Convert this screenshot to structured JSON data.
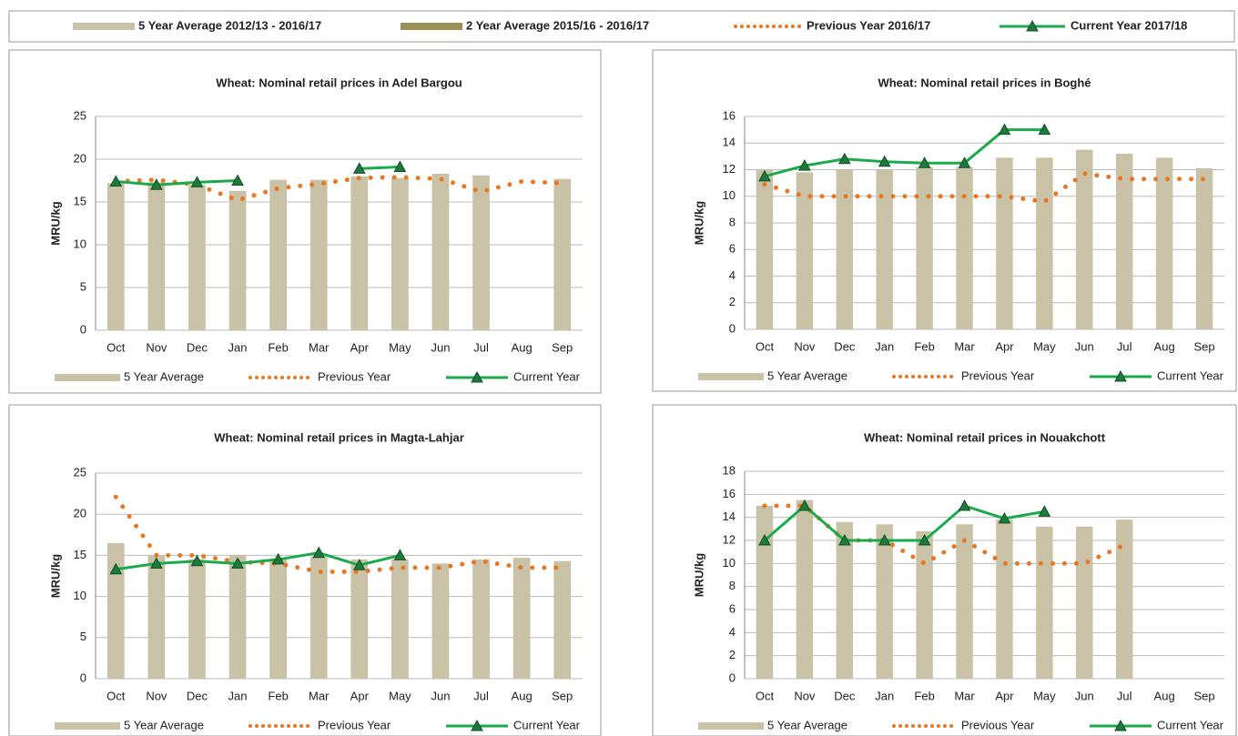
{
  "legend": [
    {
      "name": "5 Year Average 2012/13 - 2016/17",
      "color": "#c9c2a6",
      "style": "bar"
    },
    {
      "name": "2 Year Average 2015/16 - 2016/17",
      "color": "#9c8f57",
      "style": "bar"
    },
    {
      "name": "Previous Year 2016/17",
      "color": "#e87722",
      "style": "dotted"
    },
    {
      "name": "Current Year 2017/18",
      "color": "#1aaa4b",
      "style": "line-marker"
    }
  ],
  "chart_data": [
    {
      "type": "combo",
      "title": "Wheat: Nominal retail prices in Adel Bargou",
      "ylabel": "MRU/kg",
      "categories": [
        "Oct",
        "Nov",
        "Dec",
        "Jan",
        "Feb",
        "Mar",
        "Apr",
        "May",
        "Jun",
        "Jul",
        "Aug",
        "Sep"
      ],
      "ylim": [
        0,
        25
      ],
      "yticks": [
        0,
        5,
        10,
        15,
        20,
        25
      ],
      "grid": true,
      "series": [
        {
          "name": "5 Year Average",
          "color": "#c9c2a6",
          "style": "bar",
          "values": [
            17.2,
            17.3,
            17.0,
            16.3,
            17.6,
            17.6,
            18.0,
            17.8,
            18.3,
            18.1,
            null,
            17.7
          ]
        },
        {
          "name": "Previous Year",
          "color": "#e87722",
          "style": "dotted",
          "values": [
            17.4,
            17.6,
            17.0,
            15.2,
            16.6,
            17.1,
            17.8,
            17.9,
            17.7,
            16.2,
            17.4,
            17.2
          ]
        },
        {
          "name": "Current Year",
          "color": "#1aaa4b",
          "style": "line-marker",
          "values": [
            17.4,
            17.0,
            17.3,
            17.5,
            null,
            null,
            18.9,
            19.1,
            null,
            null,
            null,
            null
          ]
        }
      ]
    },
    {
      "type": "combo",
      "title": "Wheat: Nominal retail prices in Boghé",
      "ylabel": "MRU/kg",
      "categories": [
        "Oct",
        "Nov",
        "Dec",
        "Jan",
        "Feb",
        "Mar",
        "Apr",
        "May",
        "Jun",
        "Jul",
        "Aug",
        "Sep"
      ],
      "ylim": [
        0,
        16
      ],
      "yticks": [
        0,
        2,
        4,
        6,
        8,
        10,
        12,
        14,
        16
      ],
      "grid": true,
      "series": [
        {
          "name": "5 Year Average",
          "color": "#c9c2a6",
          "style": "bar",
          "values": [
            12.0,
            11.8,
            12.0,
            12.0,
            12.2,
            12.2,
            12.9,
            12.9,
            13.5,
            13.2,
            12.9,
            12.1
          ]
        },
        {
          "name": "Previous Year",
          "color": "#e87722",
          "style": "dotted",
          "values": [
            10.9,
            10.0,
            10.0,
            10.0,
            10.0,
            10.0,
            10.0,
            9.6,
            11.7,
            11.3,
            11.3,
            11.3
          ]
        },
        {
          "name": "Current Year",
          "color": "#1aaa4b",
          "style": "line-marker",
          "values": [
            11.5,
            12.3,
            12.8,
            12.6,
            12.5,
            12.5,
            15.0,
            15.0,
            null,
            null,
            null,
            null
          ]
        }
      ]
    },
    {
      "type": "combo",
      "title": "Wheat: Nominal retail prices in Magta-Lahjar",
      "ylabel": "MRU/kg",
      "categories": [
        "Oct",
        "Nov",
        "Dec",
        "Jan",
        "Feb",
        "Mar",
        "Apr",
        "May",
        "Jun",
        "Jul",
        "Aug",
        "Sep"
      ],
      "ylim": [
        0,
        25
      ],
      "yticks": [
        0,
        5,
        10,
        15,
        20,
        25
      ],
      "grid": true,
      "series": [
        {
          "name": "5 Year Average",
          "color": "#c9c2a6",
          "style": "bar",
          "values": [
            16.5,
            15.0,
            14.5,
            15.0,
            14.5,
            14.8,
            14.5,
            14.5,
            14.0,
            14.5,
            14.7,
            14.3
          ]
        },
        {
          "name": "Previous Year",
          "color": "#e87722",
          "style": "dotted",
          "values": [
            22.1,
            15.0,
            15.0,
            14.2,
            14.0,
            13.0,
            13.0,
            13.5,
            13.5,
            14.3,
            13.5,
            13.5
          ]
        },
        {
          "name": "Current Year",
          "color": "#1aaa4b",
          "style": "line-marker",
          "values": [
            13.3,
            14.0,
            14.3,
            14.0,
            14.5,
            15.3,
            13.8,
            15.0,
            null,
            null,
            null,
            null
          ]
        }
      ]
    },
    {
      "type": "combo",
      "title": "Wheat: Nominal retail prices in Nouakchott",
      "ylabel": "MRU/kg",
      "categories": [
        "Oct",
        "Nov",
        "Dec",
        "Jan",
        "Feb",
        "Mar",
        "Apr",
        "May",
        "Jun",
        "Jul",
        "Aug",
        "Sep"
      ],
      "ylim": [
        0,
        18
      ],
      "yticks": [
        0,
        2,
        4,
        6,
        8,
        10,
        12,
        14,
        16,
        18
      ],
      "grid": true,
      "series": [
        {
          "name": "5 Year Average",
          "color": "#c9c2a6",
          "style": "bar",
          "values": [
            15.0,
            15.5,
            13.6,
            13.4,
            12.8,
            13.4,
            13.8,
            13.2,
            13.2,
            13.8,
            null,
            null
          ]
        },
        {
          "name": "Previous Year",
          "color": "#e87722",
          "style": "dotted",
          "values": [
            15.0,
            15.0,
            12.0,
            12.0,
            10.0,
            12.0,
            10.0,
            10.0,
            10.0,
            11.6,
            null,
            null
          ]
        },
        {
          "name": "Current Year",
          "color": "#1aaa4b",
          "style": "line-marker",
          "values": [
            12.0,
            15.0,
            12.0,
            12.0,
            12.0,
            15.0,
            13.9,
            14.5,
            null,
            null,
            null,
            null
          ]
        }
      ]
    }
  ]
}
